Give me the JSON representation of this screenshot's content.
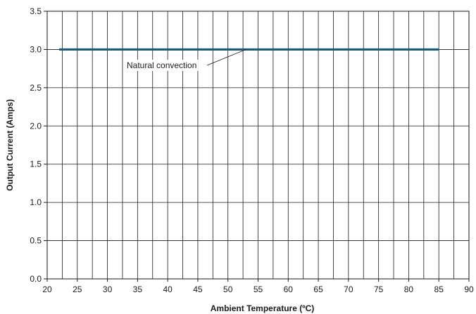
{
  "chart_data": {
    "type": "line",
    "title": "",
    "xlabel": "Ambient Temperature (ºC)",
    "ylabel": "Output Current (Amps)",
    "xlim": [
      20,
      90
    ],
    "ylim": [
      0.0,
      3.5
    ],
    "x_ticks": [
      20,
      25,
      30,
      35,
      40,
      45,
      50,
      55,
      60,
      65,
      70,
      75,
      80,
      85,
      90
    ],
    "x_tick_labels": [
      "20",
      "25",
      "30",
      "35",
      "40",
      "45",
      "50",
      "55",
      "60",
      "65",
      "70",
      "75",
      "80",
      "85",
      "90"
    ],
    "y_ticks": [
      0.0,
      0.5,
      1.0,
      1.5,
      2.0,
      2.5,
      3.0,
      3.5
    ],
    "y_tick_labels": [
      "0.0",
      "0.5",
      "1.0",
      "1.5",
      "2.0",
      "2.5",
      "3.0",
      "3.5"
    ],
    "x_minor_step": 2.5,
    "grid": true,
    "series": [
      {
        "x": [
          22,
          85
        ],
        "y": [
          3.0,
          3.0
        ],
        "color": "#1e5b7a"
      }
    ],
    "annotations": [
      {
        "text": "Natural convection",
        "x": 53,
        "y": 3.0
      }
    ]
  }
}
